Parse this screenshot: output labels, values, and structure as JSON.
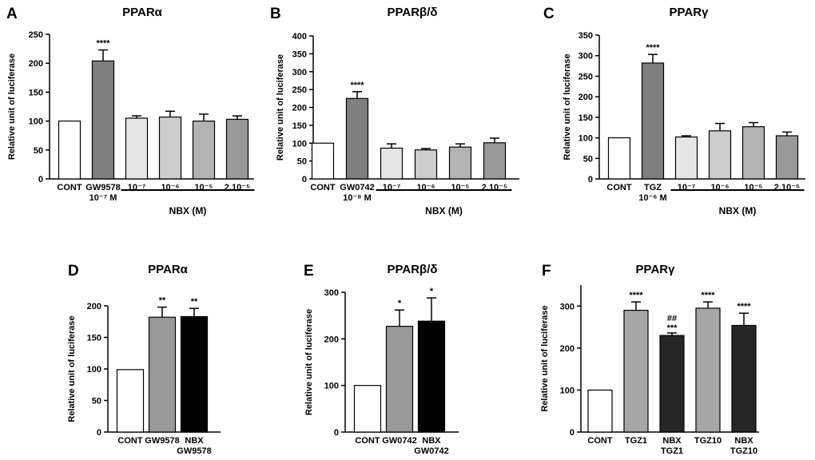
{
  "chart_data": [
    {
      "panel": "A",
      "type": "bar",
      "title": "PPARα",
      "ylabel": "Relative unit of luciferase",
      "ylim": [
        0,
        250
      ],
      "yticks": [
        "0",
        "50",
        "100",
        "150",
        "200",
        "250"
      ],
      "categories": [
        [
          "CONT"
        ],
        [
          "GW9578",
          "10⁻⁷ M"
        ],
        [
          "10⁻⁷"
        ],
        [
          "10⁻⁶"
        ],
        [
          "10⁻⁵"
        ],
        [
          "2.10⁻⁵"
        ]
      ],
      "values": [
        100,
        204,
        105,
        107,
        100,
        103
      ],
      "errors": [
        0,
        19,
        4,
        10,
        12,
        6
      ],
      "colors": [
        "#ffffff",
        "#7f7f7f",
        "#e6e6e6",
        "#cdcdcd",
        "#b3b3b3",
        "#999999"
      ],
      "significance": [
        "",
        "****",
        "",
        "",
        "",
        ""
      ],
      "group_label": "NBX (M)",
      "group_start": 2,
      "group_end": 5
    },
    {
      "panel": "B",
      "type": "bar",
      "title": "PPARβ/δ",
      "ylabel": "Relative unit of luciferase",
      "ylim": [
        0,
        400
      ],
      "yticks": [
        "0",
        "50",
        "100",
        "150",
        "200",
        "250",
        "300",
        "350",
        "400"
      ],
      "categories": [
        [
          "CONT"
        ],
        [
          "GW0742",
          "10⁻⁸ M"
        ],
        [
          "10⁻⁷"
        ],
        [
          "10⁻⁶"
        ],
        [
          "10⁻⁵"
        ],
        [
          "2.10⁻⁵"
        ]
      ],
      "values": [
        100,
        225,
        86,
        81,
        89,
        101
      ],
      "errors": [
        0,
        19,
        12,
        4,
        9,
        13
      ],
      "colors": [
        "#ffffff",
        "#7f7f7f",
        "#e6e6e6",
        "#cdcdcd",
        "#b3b3b3",
        "#999999"
      ],
      "significance": [
        "",
        "****",
        "",
        "",
        "",
        ""
      ],
      "group_label": "NBX (M)",
      "group_start": 2,
      "group_end": 5
    },
    {
      "panel": "C",
      "type": "bar",
      "title": "PPARγ",
      "ylabel": "Relative unit of luciferase",
      "ylim": [
        0,
        350
      ],
      "yticks": [
        "0",
        "50",
        "100",
        "150",
        "200",
        "250",
        "300",
        "350"
      ],
      "categories": [
        [
          "CONT"
        ],
        [
          "TGZ",
          "10⁻⁶ M"
        ],
        [
          "10⁻⁷"
        ],
        [
          "10⁻⁶"
        ],
        [
          "10⁻⁵"
        ],
        [
          "2.10⁻⁵"
        ]
      ],
      "values": [
        100,
        282,
        102,
        117,
        127,
        105
      ],
      "errors": [
        0,
        21,
        3,
        18,
        10,
        9
      ],
      "colors": [
        "#ffffff",
        "#7f7f7f",
        "#e6e6e6",
        "#cdcdcd",
        "#b3b3b3",
        "#999999"
      ],
      "significance": [
        "",
        "****",
        "",
        "",
        "",
        ""
      ],
      "group_label": "NBX (M)",
      "group_start": 2,
      "group_end": 5
    },
    {
      "panel": "D",
      "type": "bar",
      "title": "PPARα",
      "ylabel": "Relative unit of luciferase",
      "ylim": [
        0,
        200
      ],
      "yticks": [
        "0",
        "50",
        "100",
        "150",
        "200"
      ],
      "categories": [
        [
          "CONT"
        ],
        [
          "GW9578"
        ],
        [
          "NBX",
          "GW9578"
        ]
      ],
      "values": [
        99,
        182,
        183
      ],
      "errors": [
        0,
        16,
        13
      ],
      "colors": [
        "#ffffff",
        "#999999",
        "#000000"
      ],
      "significance": [
        "",
        "**",
        "**"
      ]
    },
    {
      "panel": "E",
      "type": "bar",
      "title": "PPARβ/δ",
      "ylabel": "Relative unit of luciferase",
      "ylim": [
        0,
        300
      ],
      "yticks": [
        "0",
        "100",
        "200",
        "300"
      ],
      "categories": [
        [
          "CONT"
        ],
        [
          "GW0742"
        ],
        [
          "NBX",
          "GW0742"
        ]
      ],
      "values": [
        100,
        227,
        238
      ],
      "errors": [
        0,
        35,
        50
      ],
      "colors": [
        "#ffffff",
        "#999999",
        "#000000"
      ],
      "significance": [
        "",
        "*",
        "*"
      ]
    },
    {
      "panel": "F",
      "type": "bar",
      "title": "PPARγ",
      "ylabel": "Relative unit of luciferase",
      "ylim": [
        0,
        350
      ],
      "yticks": [
        "0",
        "100",
        "200",
        "300"
      ],
      "categories": [
        [
          "CONT"
        ],
        [
          "TGZ1"
        ],
        [
          "NBX",
          "TGZ1"
        ],
        [
          "TGZ10"
        ],
        [
          "NBX",
          "TGZ10"
        ]
      ],
      "values": [
        100,
        290,
        230,
        295,
        254
      ],
      "errors": [
        0,
        20,
        6,
        15,
        29
      ],
      "colors": [
        "#ffffff",
        "#a6a6a6",
        "#262626",
        "#a6a6a6",
        "#262626"
      ],
      "significance": [
        "",
        "****",
        [
          "##",
          "***"
        ],
        "****",
        "****"
      ]
    }
  ]
}
